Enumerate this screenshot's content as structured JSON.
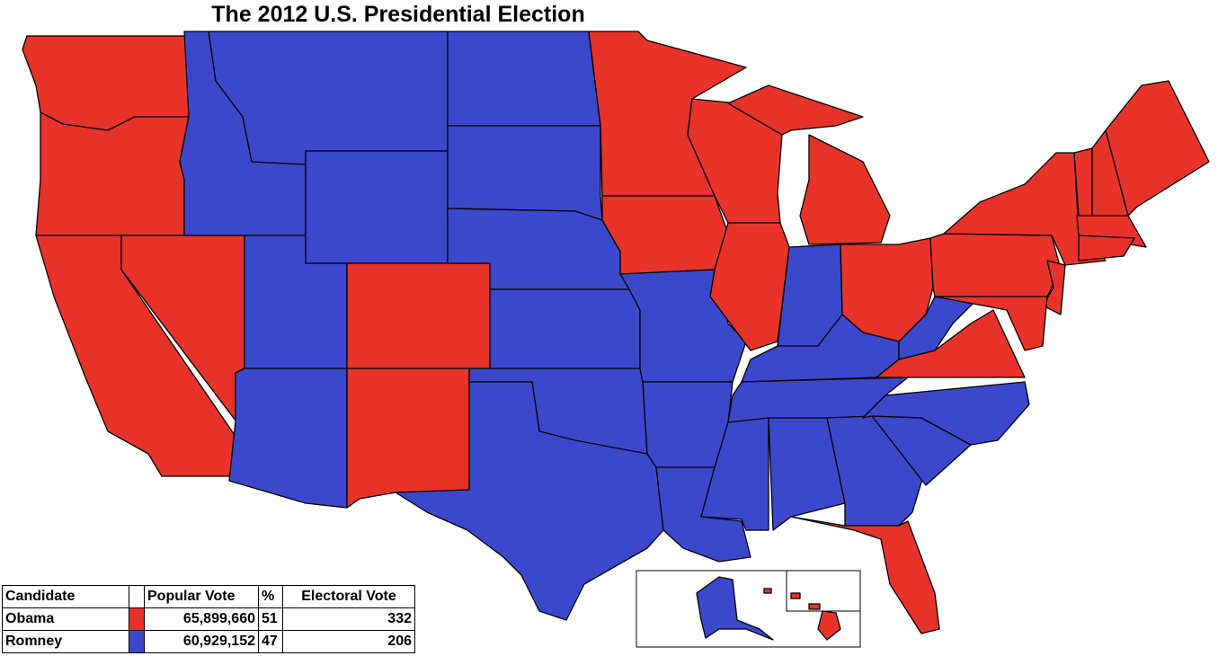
{
  "title": "The 2012 U.S. Presidential Election",
  "table": {
    "header": {
      "candidate": "Candidate",
      "popular_vote": "Popular Vote",
      "percent": "%",
      "electoral_vote": "Electoral Vote"
    },
    "rows": [
      {
        "candidate": "Obama",
        "color": "#e8332a",
        "popular_vote": "65,899,660",
        "percent": 51,
        "electoral_vote": 332
      },
      {
        "candidate": "Romney",
        "color": "#3c48cc",
        "popular_vote": "60,929,152",
        "percent": 47,
        "electoral_vote": 206
      }
    ]
  }
}
